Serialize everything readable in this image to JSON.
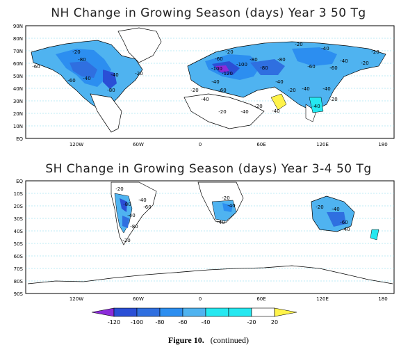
{
  "figure": {
    "label": "Figure 10.",
    "note": "(continued)"
  },
  "nh_panel": {
    "title": "NH Change in Growing Season (days) Year 3 50 Tg",
    "lat_labels": [
      "90N",
      "80N",
      "70N",
      "60N",
      "50N",
      "40N",
      "30N",
      "20N",
      "10N",
      "EQ"
    ],
    "lon_labels": [
      "120W",
      "60W",
      "0",
      "60E",
      "120E",
      "180"
    ],
    "contour_labels": [
      "-20",
      "-60",
      "-80",
      "-40",
      "-60",
      "-80",
      "-40",
      "-20",
      "-60",
      "-100",
      "-120",
      "-80",
      "-80",
      "-100",
      "-40",
      "-60",
      "-40",
      "-20",
      "-40",
      "-20",
      "-40",
      "-20",
      "-40",
      "-20",
      "-80",
      "-60",
      "-40",
      "-60",
      "-40",
      "-20",
      "-40",
      "-20",
      "-20",
      "-40",
      "-20",
      "-40",
      "-20"
    ]
  },
  "sh_panel": {
    "title": "SH Change in Growing Season (days) Year 3-4 50 Tg",
    "lat_labels": [
      "EQ",
      "10S",
      "20S",
      "30S",
      "40S",
      "50S",
      "60S",
      "70S",
      "80S",
      "90S"
    ],
    "lon_labels": [
      "120W",
      "60W",
      "0",
      "60E",
      "120E",
      "180"
    ],
    "contour_labels": [
      "-20",
      "-40",
      "-60",
      "-80",
      "-40",
      "-80",
      "-20",
      "-20",
      "-40",
      "-40",
      "-20",
      "-40",
      "-60",
      "-40"
    ]
  },
  "colorbar": {
    "tick_labels": [
      "-120",
      "-100",
      "-80",
      "-60",
      "-40",
      "-20",
      "20"
    ],
    "colors": [
      "#8b2bd9",
      "#2a4fd6",
      "#2f6fe0",
      "#2c8ef0",
      "#4fb3f0",
      "#25e8f0",
      "#ffffff",
      "#fff34a"
    ]
  }
}
